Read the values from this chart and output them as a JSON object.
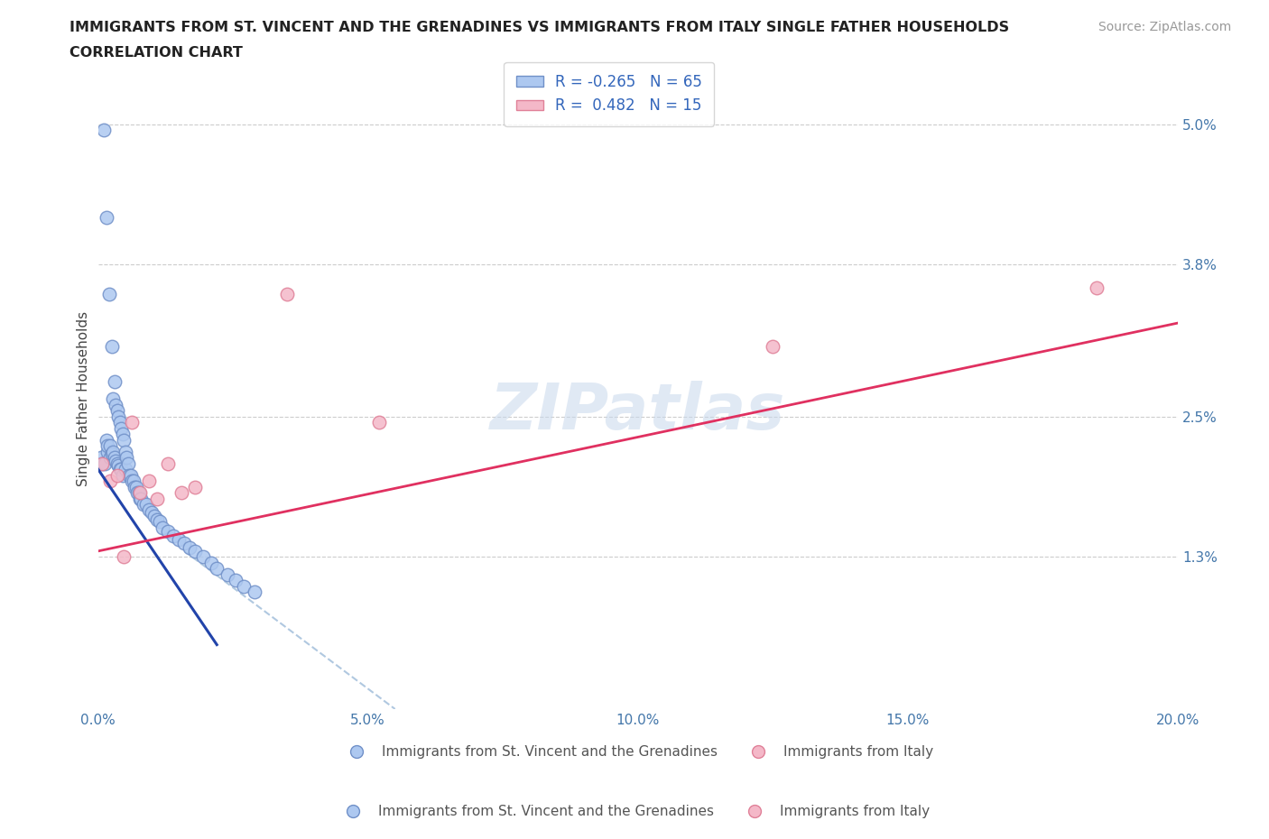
{
  "title_line1": "IMMIGRANTS FROM ST. VINCENT AND THE GRENADINES VS IMMIGRANTS FROM ITALY SINGLE FATHER HOUSEHOLDS",
  "title_line2": "CORRELATION CHART",
  "source_text": "Source: ZipAtlas.com",
  "ylabel": "Single Father Households",
  "watermark": "ZIPatlas",
  "blue_R": -0.265,
  "blue_N": 65,
  "pink_R": 0.482,
  "pink_N": 15,
  "blue_color": "#adc8f0",
  "pink_color": "#f4b8c8",
  "blue_edge": "#7090c8",
  "pink_edge": "#e08098",
  "trend_blue": "#2244aa",
  "trend_pink": "#e03060",
  "dash_color": "#b0c8e0",
  "xlim": [
    0,
    20
  ],
  "ylim": [
    0,
    5.3
  ],
  "yticks": [
    1.3,
    2.5,
    3.8,
    5.0
  ],
  "ytick_labels": [
    "1.3%",
    "2.5%",
    "3.8%",
    "5.0%"
  ],
  "xticks": [
    0,
    5,
    10,
    15,
    20
  ],
  "xtick_labels": [
    "0.0%",
    "5.0%",
    "10.0%",
    "15.0%",
    "20.0%"
  ],
  "legend_label1": "Immigrants from St. Vincent and the Grenadines",
  "legend_label2": "Immigrants from Italy",
  "blue_x": [
    0.05,
    0.08,
    0.1,
    0.12,
    0.15,
    0.15,
    0.18,
    0.18,
    0.2,
    0.22,
    0.22,
    0.25,
    0.25,
    0.28,
    0.28,
    0.3,
    0.3,
    0.32,
    0.32,
    0.35,
    0.35,
    0.38,
    0.38,
    0.4,
    0.4,
    0.42,
    0.42,
    0.45,
    0.45,
    0.48,
    0.5,
    0.5,
    0.52,
    0.55,
    0.58,
    0.6,
    0.62,
    0.65,
    0.68,
    0.7,
    0.72,
    0.75,
    0.78,
    0.8,
    0.85,
    0.9,
    0.95,
    1.0,
    1.05,
    1.1,
    1.15,
    1.2,
    1.3,
    1.4,
    1.5,
    1.6,
    1.7,
    1.8,
    1.95,
    2.1,
    2.2,
    2.4,
    2.55,
    2.7,
    2.9
  ],
  "blue_y": [
    2.15,
    2.1,
    4.95,
    2.1,
    4.2,
    2.3,
    2.2,
    2.25,
    3.55,
    2.25,
    2.15,
    3.1,
    2.18,
    2.65,
    2.2,
    2.8,
    2.15,
    2.6,
    2.12,
    2.55,
    2.1,
    2.5,
    2.08,
    2.45,
    2.05,
    2.4,
    2.05,
    2.35,
    2.0,
    2.3,
    2.2,
    2.05,
    2.15,
    2.1,
    2.0,
    2.0,
    1.95,
    1.95,
    1.9,
    1.9,
    1.85,
    1.85,
    1.8,
    1.8,
    1.75,
    1.75,
    1.7,
    1.68,
    1.65,
    1.62,
    1.6,
    1.55,
    1.52,
    1.48,
    1.45,
    1.42,
    1.38,
    1.35,
    1.3,
    1.25,
    1.2,
    1.15,
    1.1,
    1.05,
    1.0
  ],
  "pink_x": [
    0.08,
    0.22,
    0.35,
    0.48,
    0.62,
    0.78,
    0.95,
    1.1,
    1.3,
    1.55,
    1.8,
    3.5,
    5.2,
    12.5,
    18.5
  ],
  "pink_y": [
    2.1,
    1.95,
    2.0,
    1.3,
    2.45,
    1.85,
    1.95,
    1.8,
    2.1,
    1.85,
    1.9,
    3.55,
    2.45,
    3.1,
    3.6
  ],
  "blue_trend_x0": 0.0,
  "blue_trend_y0": 2.05,
  "blue_trend_x1": 2.2,
  "blue_trend_y1": 0.55,
  "pink_trend_x0": 0.0,
  "pink_trend_y0": 1.35,
  "pink_trend_x1": 20.0,
  "pink_trend_y1": 3.3,
  "dash_x0": 1.6,
  "dash_y0": 1.35,
  "dash_x1": 5.5,
  "dash_y1": 0.0
}
